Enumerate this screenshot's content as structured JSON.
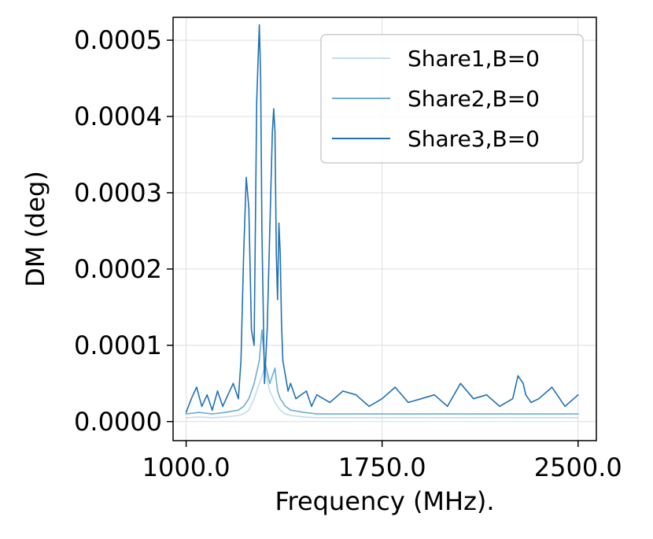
{
  "chart_data": {
    "type": "line",
    "xlabel": "Frequency (MHz).",
    "ylabel": "DM (deg)",
    "xlim": [
      950,
      2570
    ],
    "ylim": [
      -2.5e-05,
      0.00053
    ],
    "x_ticks": [
      1000,
      1750,
      2500
    ],
    "x_tick_labels": [
      "1000.0",
      "1750.0",
      "2500.0"
    ],
    "y_ticks": [
      0,
      0.0001,
      0.0002,
      0.0003,
      0.0004,
      0.0005
    ],
    "y_tick_labels": [
      "0.0000",
      "0.0001",
      "0.0002",
      "0.0003",
      "0.0004",
      "0.0005"
    ],
    "grid": true,
    "legend_position": "top-right",
    "series": [
      {
        "name": "Share1,B=0",
        "color": "#c6dbef",
        "x": [
          1000,
          1050,
          1100,
          1150,
          1200,
          1220,
          1240,
          1260,
          1280,
          1300,
          1320,
          1340,
          1360,
          1380,
          1400,
          1450,
          1500,
          1600,
          1700,
          1800,
          1900,
          2000,
          2100,
          2200,
          2300,
          2400,
          2500
        ],
        "y": [
          5e-06,
          6e-06,
          5e-06,
          6e-06,
          8e-06,
          1e-05,
          1.5e-05,
          3e-05,
          5e-05,
          7e-05,
          4e-05,
          2.5e-05,
          1.5e-05,
          1e-05,
          8e-06,
          6e-06,
          5e-06,
          5e-06,
          5e-06,
          5e-06,
          5e-06,
          5e-06,
          5e-06,
          5e-06,
          5e-06,
          5e-06,
          5e-06
        ]
      },
      {
        "name": "Share2,B=0",
        "color": "#6baed6",
        "x": [
          1000,
          1050,
          1100,
          1150,
          1200,
          1220,
          1240,
          1260,
          1280,
          1290,
          1300,
          1320,
          1340,
          1350,
          1360,
          1380,
          1400,
          1450,
          1500,
          1600,
          1700,
          1800,
          1900,
          2000,
          2100,
          2200,
          2300,
          2400,
          2500
        ],
        "y": [
          1e-05,
          1.2e-05,
          1e-05,
          1.2e-05,
          1.5e-05,
          2e-05,
          3e-05,
          5e-05,
          8e-05,
          0.00012,
          8e-05,
          5e-05,
          7e-05,
          4e-05,
          3e-05,
          2e-05,
          1.5e-05,
          1.2e-05,
          1e-05,
          1e-05,
          1e-05,
          1e-05,
          1e-05,
          1e-05,
          1e-05,
          1e-05,
          1e-05,
          1e-05,
          1e-05
        ]
      },
      {
        "name": "Share3,B=0",
        "color": "#2171b5",
        "x": [
          1000,
          1020,
          1040,
          1060,
          1080,
          1100,
          1120,
          1140,
          1160,
          1180,
          1200,
          1210,
          1220,
          1230,
          1240,
          1250,
          1260,
          1270,
          1275,
          1280,
          1285,
          1290,
          1300,
          1310,
          1320,
          1330,
          1335,
          1340,
          1345,
          1350,
          1355,
          1360,
          1365,
          1370,
          1380,
          1390,
          1400,
          1420,
          1440,
          1460,
          1480,
          1500,
          1550,
          1600,
          1650,
          1700,
          1750,
          1800,
          1850,
          1900,
          1950,
          2000,
          2050,
          2100,
          2150,
          2200,
          2250,
          2270,
          2290,
          2300,
          2320,
          2350,
          2400,
          2450,
          2500
        ],
        "y": [
          1.2e-05,
          3e-05,
          4.5e-05,
          2e-05,
          3.5e-05,
          1.5e-05,
          4e-05,
          2e-05,
          3.5e-05,
          5e-05,
          3e-05,
          8e-05,
          0.00022,
          0.00032,
          0.00028,
          0.00012,
          0.0001,
          0.00042,
          0.00047,
          0.00052,
          0.00045,
          0.00025,
          5e-05,
          0.00012,
          0.00025,
          0.00038,
          0.00041,
          0.00038,
          0.00022,
          0.00016,
          0.00026,
          0.00022,
          0.00013,
          8e-05,
          6e-05,
          4e-05,
          5e-05,
          3e-05,
          3.5e-05,
          4e-05,
          2e-05,
          3.5e-05,
          2.5e-05,
          4e-05,
          3.5e-05,
          2e-05,
          3e-05,
          4.5e-05,
          2.5e-05,
          3e-05,
          3.5e-05,
          2e-05,
          5e-05,
          3e-05,
          3.5e-05,
          2e-05,
          3e-05,
          6e-05,
          5e-05,
          3.5e-05,
          2.5e-05,
          3e-05,
          4.5e-05,
          2e-05,
          3.5e-05
        ]
      }
    ]
  }
}
